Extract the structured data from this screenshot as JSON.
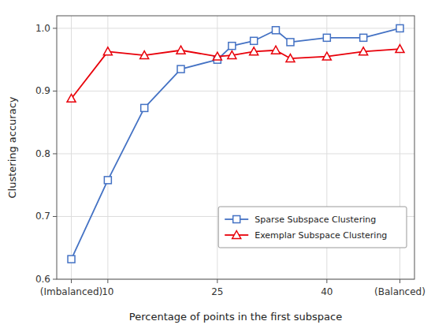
{
  "chart_data": {
    "type": "line",
    "x": [
      5,
      10,
      15,
      20,
      25,
      27,
      30,
      33,
      35,
      40,
      45,
      50
    ],
    "series": [
      {
        "name": "Sparse Subspace Clustering",
        "color": "#4472C4",
        "marker": "square",
        "values": [
          0.632,
          0.758,
          0.873,
          0.935,
          0.95,
          0.972,
          0.98,
          0.997,
          0.978,
          0.985,
          0.985,
          1.0
        ]
      },
      {
        "name": "Exemplar Subspace Clustering",
        "color": "#E8000A",
        "marker": "triangle",
        "values": [
          0.888,
          0.963,
          0.957,
          0.965,
          0.955,
          0.957,
          0.963,
          0.965,
          0.952,
          0.955,
          0.963,
          0.967
        ]
      }
    ],
    "xlabel": "Percentage of points in the first subspace",
    "ylabel": "Clustering accuracy",
    "xlim": [
      3,
      52
    ],
    "xticks": [
      {
        "value": 5,
        "label": "(Imbalanced)"
      },
      10,
      25,
      40,
      {
        "value": 50,
        "label": "(Balanced)"
      }
    ],
    "ylim": [
      0.6,
      1.02
    ],
    "yticks": [
      0.6,
      0.7,
      0.8,
      0.9,
      {
        "value": 1.0,
        "label": "1.0"
      }
    ],
    "grid": true,
    "legend": "lower right"
  }
}
